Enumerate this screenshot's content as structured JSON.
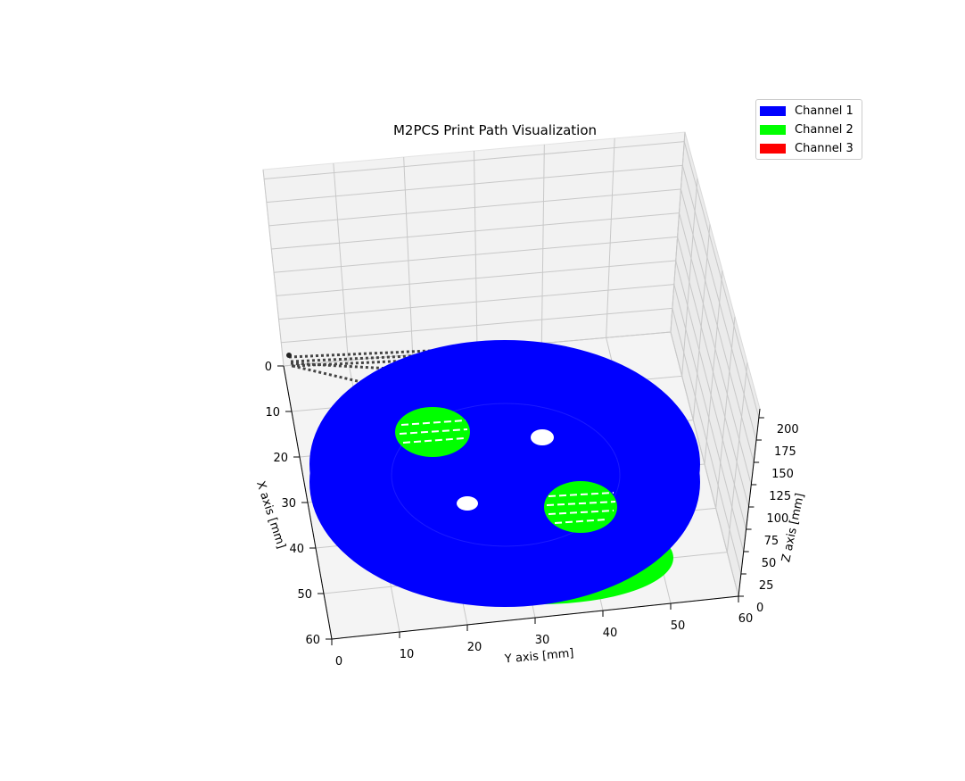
{
  "chart_data": {
    "type": "scatter",
    "projection": "3d",
    "title": "M2PCS Print Path Visualization",
    "xlabel": "X axis [mm]",
    "ylabel": "Y axis [mm]",
    "zlabel": "Z axis [mm]",
    "xlim": [
      0,
      60
    ],
    "ylim": [
      0,
      60
    ],
    "zlim": [
      0,
      210
    ],
    "x_ticks": [
      "0",
      "10",
      "20",
      "30",
      "40",
      "50",
      "60"
    ],
    "y_ticks": [
      "0",
      "10",
      "20",
      "30",
      "40",
      "50",
      "60"
    ],
    "z_ticks": [
      "0",
      "25",
      "50",
      "75",
      "100",
      "125",
      "150",
      "175",
      "200"
    ],
    "grid": true,
    "legend_position": "top-right",
    "series": [
      {
        "name": "Channel 1",
        "color": "#0000ff",
        "description_shapes": {
          "outer_disk": {
            "center_x": 30,
            "center_y": 30,
            "radius": 30
          }
        }
      },
      {
        "name": "Channel 2",
        "color": "#00ff00",
        "description_shapes": {
          "inclusions": [
            {
              "center_x": 17,
              "center_y": 15,
              "radius": 5
            },
            {
              "center_x": 43,
              "center_y": 37,
              "radius": 5.5
            }
          ]
        }
      },
      {
        "name": "Channel 3",
        "color": "#ff0000"
      }
    ],
    "travel_moves_color": "#444444"
  }
}
